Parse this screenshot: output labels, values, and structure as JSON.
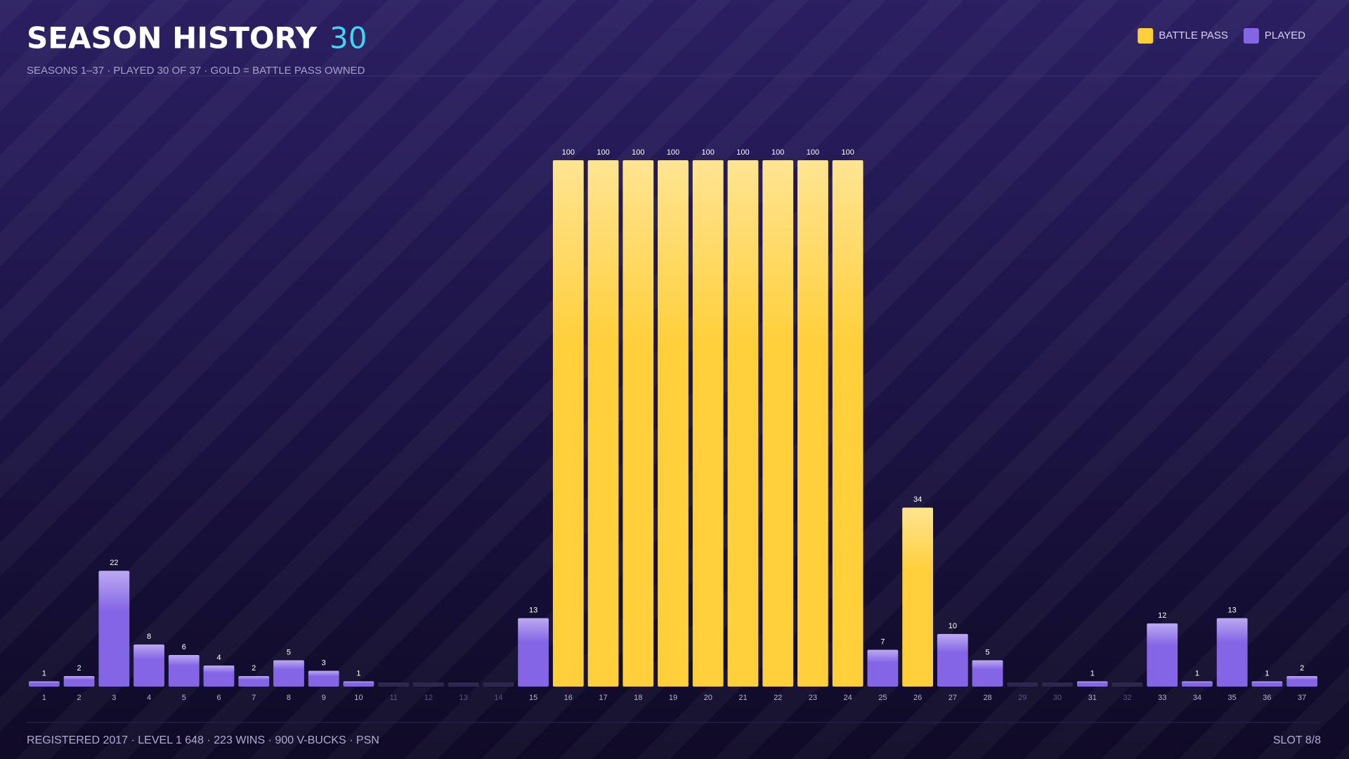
{
  "header": {
    "title": "SEASON HISTORY",
    "count": 30,
    "subtitle": "SEASONS 1–37 · PLAYED 30 OF 37 · GOLD = BATTLE PASS OWNED"
  },
  "chart_data": {
    "type": "bar",
    "categories": [
      "1",
      "2",
      "3",
      "4",
      "5",
      "6",
      "7",
      "8",
      "9",
      "10",
      "11",
      "12",
      "13",
      "14",
      "15",
      "16",
      "17",
      "18",
      "19",
      "20",
      "21",
      "22",
      "23",
      "24",
      "25",
      "26",
      "27",
      "28",
      "29",
      "30",
      "31",
      "32",
      "33",
      "34",
      "35",
      "36",
      "37"
    ],
    "series": [
      {
        "name": "BATTLE PASS",
        "color": "#ffcf3a",
        "values": [
          null,
          null,
          null,
          null,
          null,
          null,
          null,
          null,
          null,
          null,
          null,
          null,
          null,
          null,
          null,
          100,
          100,
          100,
          100,
          100,
          100,
          100,
          100,
          100,
          null,
          34,
          null,
          null,
          null,
          null,
          null,
          null,
          null,
          null,
          null,
          null,
          null
        ]
      },
      {
        "name": "PLAYED",
        "color": "#8465e6",
        "values": [
          1,
          2,
          22,
          8,
          6,
          4,
          2,
          5,
          3,
          1,
          null,
          null,
          null,
          null,
          13,
          null,
          null,
          null,
          null,
          null,
          null,
          null,
          null,
          null,
          7,
          null,
          10,
          5,
          null,
          null,
          1,
          null,
          12,
          1,
          13,
          1,
          2
        ]
      }
    ],
    "ylim": [
      0,
      100
    ],
    "legend": "top-right"
  },
  "footer": {
    "left": "REGISTERED 2017 · LEVEL 1 648 · 223 WINS · 900 V-BUCKS · PSN",
    "right": "SLOT 8/8"
  }
}
